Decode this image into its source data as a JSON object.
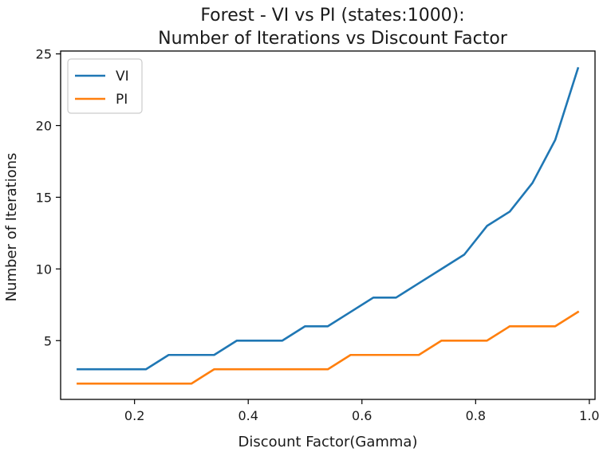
{
  "chart_data": {
    "type": "line",
    "title_lines": [
      "Forest - VI vs PI (states:1000):",
      "Number of Iterations vs Discount Factor"
    ],
    "xlabel": "Discount Factor(Gamma)",
    "ylabel": "Number of Iterations",
    "xlim": [
      0.07,
      1.01
    ],
    "ylim": [
      0.9,
      25.2
    ],
    "xticks": [
      0.2,
      0.4,
      0.6,
      0.8,
      1.0
    ],
    "xtick_labels": [
      "0.2",
      "0.4",
      "0.6",
      "0.8",
      "1.0"
    ],
    "yticks": [
      5,
      10,
      15,
      20,
      25
    ],
    "ytick_labels": [
      "5",
      "10",
      "15",
      "20",
      "25"
    ],
    "grid": false,
    "legend_position": "upper-left",
    "x": [
      0.1,
      0.14,
      0.18,
      0.22,
      0.26,
      0.3,
      0.34,
      0.38,
      0.42,
      0.46,
      0.5,
      0.54,
      0.58,
      0.62,
      0.66,
      0.7,
      0.74,
      0.78,
      0.82,
      0.86,
      0.9,
      0.94,
      0.98
    ],
    "series": [
      {
        "name": "VI",
        "color": "#1f77b4",
        "values": [
          3,
          3,
          3,
          3,
          4,
          4,
          4,
          5,
          5,
          5,
          6,
          6,
          7,
          8,
          8,
          9,
          10,
          11,
          13,
          14,
          16,
          19,
          24
        ]
      },
      {
        "name": "PI",
        "color": "#ff7f0e",
        "values": [
          2,
          2,
          2,
          2,
          2,
          2,
          3,
          3,
          3,
          3,
          3,
          3,
          4,
          4,
          4,
          4,
          5,
          5,
          5,
          6,
          6,
          6,
          7
        ]
      }
    ]
  }
}
